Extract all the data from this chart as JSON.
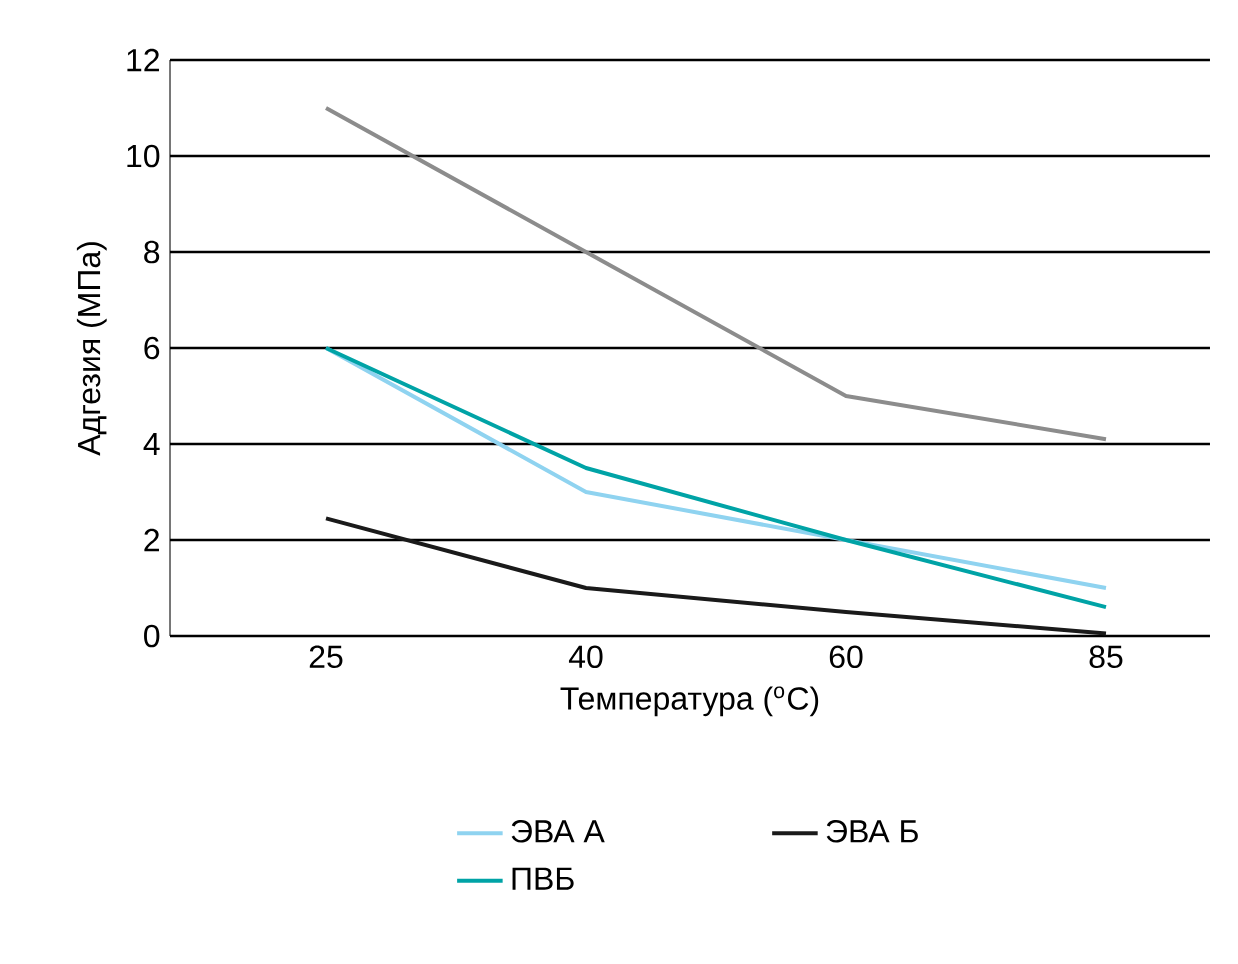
{
  "chart_data": {
    "type": "line",
    "xlabel": "Температура ($^{o}$C)",
    "ylabel": "Адгезия (МПа)",
    "categories": [
      "25",
      "40",
      "60",
      "85"
    ],
    "series": [
      {
        "color": "#8c8c8c",
        "values": [
          11,
          8,
          5,
          4.1
        ]
      },
      {
        "name": "ЭВА А",
        "color": "#8fd3f0",
        "values": [
          6,
          3,
          2,
          1
        ]
      },
      {
        "name": "ЭВА Б",
        "color": "#1a1a1a",
        "values": [
          2.45,
          1,
          0.5,
          0.05
        ]
      },
      {
        "name": "ПВБ",
        "color": "#00a3a6",
        "values": [
          6,
          3.5,
          2,
          0.6
        ]
      }
    ],
    "ylim": [
      0,
      12
    ],
    "yticks": [
      0,
      2,
      4,
      6,
      8,
      10,
      12
    ],
    "grid": "y",
    "legend": "bottom",
    "marker": "none",
    "line_style": "solid"
  }
}
